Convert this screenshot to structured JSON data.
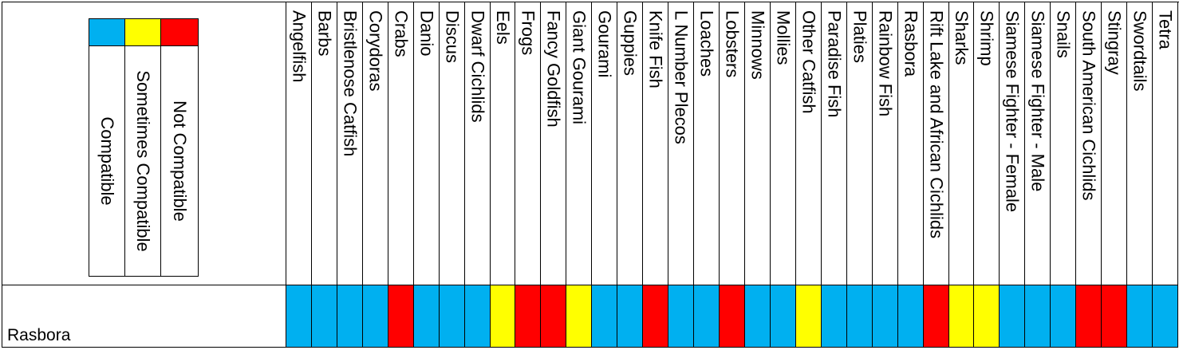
{
  "colors": {
    "compatible": "#00b0f0",
    "sometimes": "#ffff00",
    "not": "#ff0000"
  },
  "legend": {
    "compatible": "Compatible",
    "sometimes": "Sometimes Compatible",
    "not": "Not Compatible"
  },
  "row_label": "Rasbora",
  "columns": [
    {
      "label": "Angelfish",
      "status": "compatible"
    },
    {
      "label": "Barbs",
      "status": "compatible"
    },
    {
      "label": "Bristlenose Catfish",
      "status": "compatible"
    },
    {
      "label": "Corydoras",
      "status": "compatible"
    },
    {
      "label": "Crabs",
      "status": "not"
    },
    {
      "label": "Danio",
      "status": "compatible"
    },
    {
      "label": "Discus",
      "status": "compatible"
    },
    {
      "label": "Dwarf Cichlids",
      "status": "compatible"
    },
    {
      "label": "Eels",
      "status": "sometimes"
    },
    {
      "label": "Frogs",
      "status": "not"
    },
    {
      "label": "Fancy Goldfish",
      "status": "not"
    },
    {
      "label": "Giant Gourami",
      "status": "sometimes"
    },
    {
      "label": "Gourami",
      "status": "compatible"
    },
    {
      "label": "Guppies",
      "status": "compatible"
    },
    {
      "label": "Knife Fish",
      "status": "not"
    },
    {
      "label": "L Number Plecos",
      "status": "compatible"
    },
    {
      "label": "Loaches",
      "status": "compatible"
    },
    {
      "label": "Lobsters",
      "status": "not"
    },
    {
      "label": "Minnows",
      "status": "compatible"
    },
    {
      "label": "Mollies",
      "status": "compatible"
    },
    {
      "label": "Other Catfish",
      "status": "sometimes"
    },
    {
      "label": "Paradise Fish",
      "status": "compatible"
    },
    {
      "label": "Platies",
      "status": "compatible"
    },
    {
      "label": "Rainbow Fish",
      "status": "compatible"
    },
    {
      "label": "Rasbora",
      "status": "compatible"
    },
    {
      "label": "Rift Lake and African Cichlids",
      "status": "not"
    },
    {
      "label": "Sharks",
      "status": "sometimes"
    },
    {
      "label": "Shrimp",
      "status": "sometimes"
    },
    {
      "label": "Siamese Fighter - Female",
      "status": "compatible"
    },
    {
      "label": "Siamese Fighter - Male",
      "status": "compatible"
    },
    {
      "label": "Snails",
      "status": "compatible"
    },
    {
      "label": "South American Cichlids",
      "status": "not"
    },
    {
      "label": "Stingray",
      "status": "not"
    },
    {
      "label": "Swordtails",
      "status": "compatible"
    },
    {
      "label": "Tetra",
      "status": "compatible"
    }
  ]
}
